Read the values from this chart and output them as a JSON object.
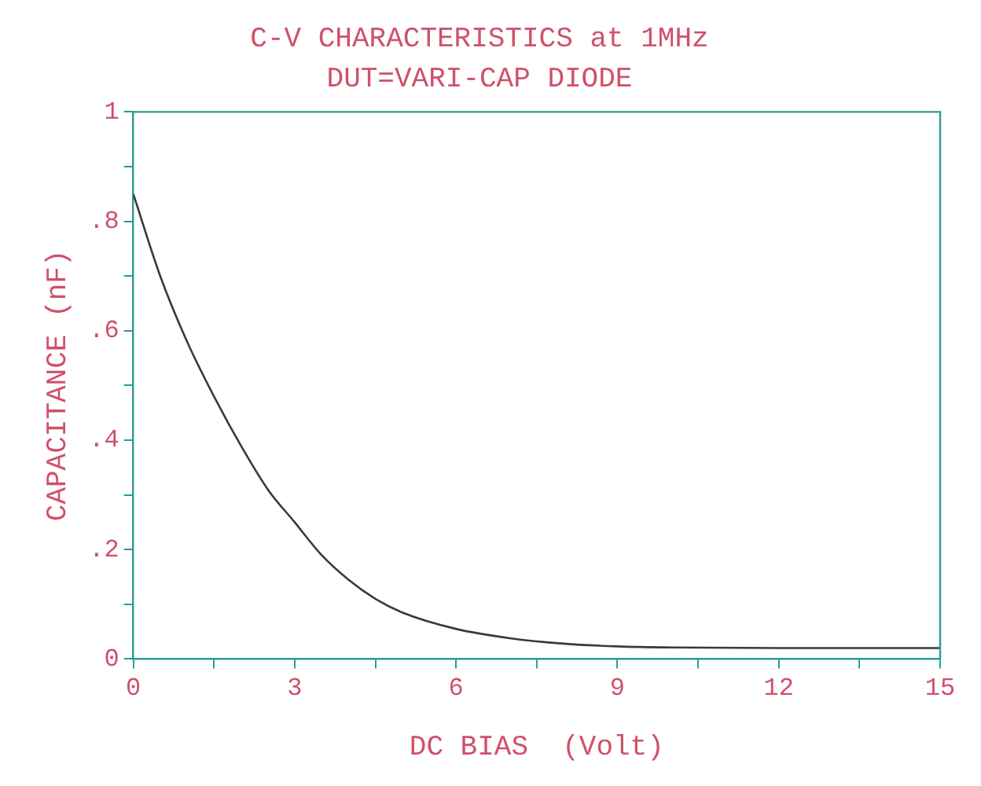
{
  "chart_data": {
    "type": "line",
    "title": "C-V CHARACTERISTICS at 1MHz",
    "subtitle": "DUT=VARI-CAP DIODE",
    "xlabel": "DC BIAS  (Volt)",
    "ylabel": "CAPACITANCE (nF)",
    "series": [
      {
        "color": "#3a3a3a",
        "x": [
          0,
          0.5,
          1,
          1.5,
          2,
          2.5,
          3,
          3.5,
          4,
          4.5,
          5,
          6,
          7,
          8,
          9,
          10,
          12,
          15
        ],
        "values": [
          0.85,
          0.7,
          0.58,
          0.48,
          0.39,
          0.31,
          0.25,
          0.19,
          0.145,
          0.11,
          0.085,
          0.055,
          0.038,
          0.028,
          0.023,
          0.021,
          0.02,
          0.02
        ]
      }
    ],
    "xlim": [
      0,
      15
    ],
    "xticks": [
      0,
      {
        "value": 1.5,
        "label": null
      },
      3,
      {
        "value": 4.5,
        "label": null
      },
      6,
      {
        "value": 7.5,
        "label": null
      },
      9,
      {
        "value": 10.5,
        "label": null
      },
      12,
      {
        "value": 13.5,
        "label": null
      },
      15
    ],
    "ylim": [
      0,
      1
    ],
    "yticks": [
      0,
      {
        "value": 0.1,
        "label": null
      },
      {
        "value": 0.2,
        "label": ".2"
      },
      {
        "value": 0.3,
        "label": null
      },
      {
        "value": 0.4,
        "label": ".4"
      },
      {
        "value": 0.5,
        "label": null
      },
      {
        "value": 0.6,
        "label": ".6"
      },
      {
        "value": 0.7,
        "label": null
      },
      {
        "value": 0.8,
        "label": ".8"
      },
      {
        "value": 0.9,
        "label": null
      },
      1
    ],
    "grid": false,
    "legend": false,
    "marker": "none",
    "line_style": "solid"
  }
}
